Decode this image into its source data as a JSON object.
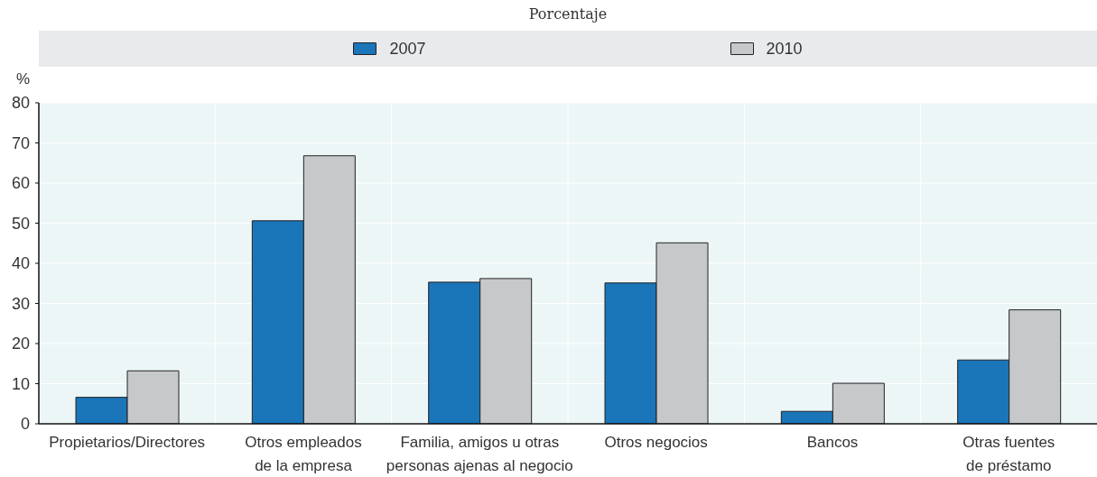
{
  "chart_data": {
    "type": "bar",
    "title": "Porcentaje",
    "ylabel": "%",
    "categories": [
      "Propietarios/Directores",
      "Otros empleados\nde la empresa",
      "Familia, amigos u otras\npersonas ajenas al negocio",
      "Otros negocios",
      "Bancos",
      "Otras fuentes\nde préstamo"
    ],
    "series": [
      {
        "name": "2007",
        "color": "#1a75b9",
        "values": [
          6.6,
          50.6,
          35.3,
          35.1,
          3.1,
          15.9
        ]
      },
      {
        "name": "2010",
        "color": "#c7c8ca",
        "values": [
          13.2,
          66.8,
          36.2,
          45.1,
          10.1,
          28.4
        ]
      }
    ],
    "ylim": [
      0,
      80
    ],
    "yticks": [
      0,
      10,
      20,
      30,
      40,
      50,
      60,
      70,
      80
    ],
    "grid": true,
    "legend": "top"
  }
}
